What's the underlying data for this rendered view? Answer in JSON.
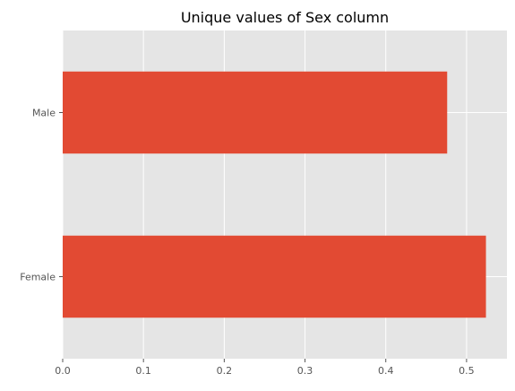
{
  "chart_data": {
    "type": "bar",
    "orientation": "horizontal",
    "title": "Unique values of Sex column",
    "xlabel": "",
    "ylabel": "",
    "categories": [
      "Female",
      "Male"
    ],
    "values": [
      0.524,
      0.476
    ],
    "xlim": [
      0,
      0.55
    ],
    "xticks": [
      "0.0",
      "0.1",
      "0.2",
      "0.3",
      "0.4",
      "0.5"
    ],
    "grid": true,
    "bar_color": "#E24A33",
    "background_color": "#E5E5E5",
    "grid_color": "#FFFFFF"
  }
}
